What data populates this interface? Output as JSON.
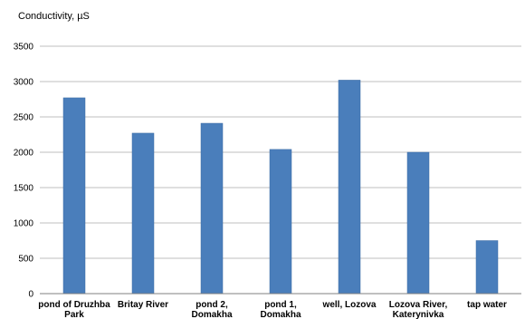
{
  "chart_data": {
    "type": "bar",
    "title": "",
    "xlabel": "",
    "ylabel": "Conductivity, µS",
    "ylim": [
      0,
      3500
    ],
    "yticks": [
      0,
      500,
      1000,
      1500,
      2000,
      2500,
      3000,
      3500
    ],
    "grid": true,
    "categories": [
      [
        "pond of Druzhba",
        "Park"
      ],
      [
        "Britay River"
      ],
      [
        "pond 2,",
        "Domakha"
      ],
      [
        "pond 1,",
        "Domakha"
      ],
      [
        "well, Lozova"
      ],
      [
        "Lozova River,",
        "Katerynivka"
      ],
      [
        "tap water"
      ]
    ],
    "values": [
      2770,
      2270,
      2410,
      2040,
      3020,
      2000,
      750
    ],
    "colors": {
      "bar": "#4a7ebb",
      "bar_edge": "#3c6aa3",
      "grid": "#bfbfbf",
      "axis": "#808080"
    }
  }
}
